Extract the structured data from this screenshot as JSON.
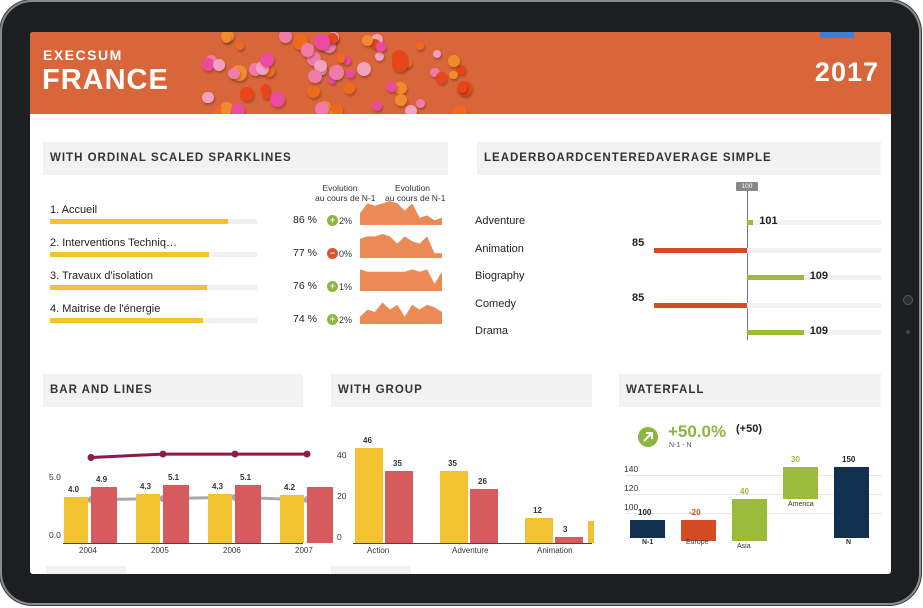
{
  "header": {
    "brand": "EXECSUM",
    "country": "FRANCE",
    "year": "2017"
  },
  "sparklines": {
    "title": "WITH ORDINAL SCALED SPARKLINES",
    "col1": [
      "Evolution",
      "au cours de N-1"
    ],
    "col2": [
      "Evolution",
      "au cours de N-1"
    ],
    "items": [
      {
        "label": "1. Accueil",
        "value": "86 %",
        "fraction": 0.86,
        "delta": "2%",
        "sign": "+",
        "spark": [
          5,
          9,
          8,
          9,
          10,
          9,
          6,
          9,
          3,
          4,
          2,
          3
        ]
      },
      {
        "label": "2. Interventions Techniq…",
        "value": "77 %",
        "fraction": 0.77,
        "delta": "0%",
        "sign": "-",
        "spark": [
          8,
          9,
          9,
          10,
          9,
          6,
          9,
          7,
          6,
          9,
          2,
          2
        ]
      },
      {
        "label": "3. Travaux d'isolation",
        "value": "76 %",
        "fraction": 0.76,
        "delta": "1%",
        "sign": "+",
        "spark": [
          9,
          8,
          8,
          8,
          8,
          8,
          8,
          9,
          8,
          9,
          3,
          8
        ]
      },
      {
        "label": "4. Maitrise de l'énergie",
        "value": "74 %",
        "fraction": 0.74,
        "delta": "2%",
        "sign": "+",
        "spark": [
          3,
          6,
          5,
          9,
          6,
          8,
          3,
          8,
          6,
          8,
          7,
          5
        ]
      }
    ],
    "colors": {
      "bar": "#f2c230",
      "track": "#f0f0f0",
      "spark": "#ec8a56",
      "plus": "#8cb63c",
      "minus": "#d9532b"
    }
  },
  "leaderboard": {
    "title": "LEADERBOARDCENTEREDAVERAGE SIMPLE",
    "average_label": "100",
    "average": 100,
    "items": [
      {
        "label": "Adventure",
        "value": 101
      },
      {
        "label": "Animation",
        "value": 85
      },
      {
        "label": "Biography",
        "value": 109
      },
      {
        "label": "Comedy",
        "value": 85
      },
      {
        "label": "Drama",
        "value": 109
      }
    ],
    "colors": {
      "above": "#9bbb3a",
      "below": "#d24b23"
    }
  },
  "bar_and_lines": {
    "title": "BAR AND LINES",
    "axis_labels": [
      "5.0",
      "0.0"
    ],
    "categories": [
      "2004",
      "2005",
      "2006",
      "2007"
    ],
    "bar_labels": [
      "4.0",
      "4.3",
      "4.3",
      "4.2"
    ],
    "bars_yellow": [
      4.0,
      4.3,
      4.3,
      4.2
    ],
    "bars_red": [
      4.9,
      5.1,
      5.1,
      4.9
    ],
    "red_labels": [
      "4.9",
      "5.1",
      "5.1",
      ""
    ],
    "line_top": [
      7.5,
      7.8,
      7.8,
      7.8
    ],
    "line_grey": [
      3.8,
      3.9,
      4.0,
      3.8
    ],
    "colors": {
      "yellow": "#f2c230",
      "red": "#d55b5e",
      "top_line": "#8b1a4d",
      "grey_line": "#a8a8a8"
    }
  },
  "with_group": {
    "title": "WITH GROUP",
    "axis_labels": [
      "40",
      "20",
      "0"
    ],
    "categories": [
      "Action",
      "Adventure",
      "Animation"
    ],
    "series_a": [
      46,
      35,
      12
    ],
    "series_b": [
      35,
      26,
      3
    ],
    "labels_a": [
      "46",
      "35",
      "12"
    ],
    "labels_b": [
      "35",
      "26",
      "3"
    ],
    "colors": {
      "a": "#f2c230",
      "b": "#d55b5e"
    }
  },
  "waterfall": {
    "title": "WATERFALL",
    "kpi": "+50.0%",
    "kpi_abs": "(+50)",
    "kpi_sub": "N-1 - N",
    "axis_labels": [
      "140",
      "120",
      "100"
    ],
    "steps": [
      {
        "label": "N-1",
        "value": 100,
        "value_label": "100",
        "kind": "total"
      },
      {
        "label": "Europe",
        "value": -20,
        "value_label": "-20",
        "kind": "neg"
      },
      {
        "label": "Asia",
        "value": 40,
        "value_label": "40",
        "kind": "pos"
      },
      {
        "label": "America",
        "value": 30,
        "value_label": "30",
        "kind": "pos"
      },
      {
        "label": "N",
        "value": 150,
        "value_label": "150",
        "kind": "total"
      }
    ],
    "colors": {
      "total": "#11304f",
      "neg": "#d24b23",
      "pos": "#9bbb3a",
      "kpi": "#8cb63c"
    }
  }
}
